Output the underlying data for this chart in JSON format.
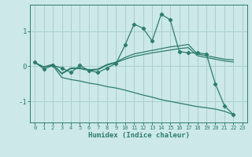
{
  "title": "",
  "xlabel": "Humidex (Indice chaleur)",
  "bg_color": "#cce8e8",
  "line_color": "#2d7d6e",
  "grid_color": "#aacfcf",
  "xlim": [
    -0.5,
    23.5
  ],
  "ylim": [
    -1.6,
    1.75
  ],
  "yticks": [
    -1,
    0,
    1
  ],
  "xticks": [
    0,
    1,
    2,
    3,
    4,
    5,
    6,
    7,
    8,
    9,
    10,
    11,
    12,
    13,
    14,
    15,
    16,
    17,
    18,
    19,
    20,
    21,
    22,
    23
  ],
  "line1_x": [
    0,
    1,
    2,
    3,
    4,
    5,
    6,
    7,
    8,
    9,
    10,
    11,
    12,
    13,
    14,
    15,
    16,
    17,
    18,
    19,
    20,
    21,
    22
  ],
  "line1_y": [
    0.12,
    -0.08,
    0.02,
    -0.05,
    -0.18,
    0.02,
    -0.12,
    -0.18,
    -0.05,
    0.08,
    0.6,
    1.2,
    1.08,
    0.72,
    1.48,
    1.32,
    0.42,
    0.38,
    0.38,
    0.35,
    -0.5,
    -1.12,
    -1.38
  ],
  "line2_x": [
    0,
    1,
    2,
    3,
    4,
    5,
    6,
    7,
    8,
    9,
    10,
    11,
    12,
    13,
    14,
    15,
    16,
    17,
    18,
    19,
    20,
    21,
    22
  ],
  "line2_y": [
    0.1,
    -0.02,
    0.05,
    -0.2,
    -0.05,
    -0.05,
    -0.1,
    -0.08,
    0.05,
    0.12,
    0.25,
    0.35,
    0.4,
    0.45,
    0.5,
    0.55,
    0.58,
    0.62,
    0.35,
    0.3,
    0.25,
    0.2,
    0.18
  ],
  "line3_x": [
    0,
    1,
    2,
    3,
    4,
    5,
    6,
    7,
    8,
    9,
    10,
    11,
    12,
    13,
    14,
    15,
    16,
    17,
    18,
    19,
    20,
    21,
    22
  ],
  "line3_y": [
    0.1,
    -0.02,
    0.05,
    -0.22,
    -0.07,
    -0.07,
    -0.12,
    -0.1,
    0.03,
    0.1,
    0.2,
    0.28,
    0.33,
    0.38,
    0.42,
    0.46,
    0.5,
    0.53,
    0.3,
    0.25,
    0.2,
    0.15,
    0.12
  ],
  "line4_x": [
    0,
    1,
    2,
    3,
    4,
    5,
    6,
    7,
    8,
    9,
    10,
    11,
    12,
    13,
    14,
    15,
    16,
    17,
    18,
    19,
    20,
    21,
    22
  ],
  "line4_y": [
    0.1,
    -0.02,
    0.02,
    -0.32,
    -0.38,
    -0.42,
    -0.48,
    -0.52,
    -0.58,
    -0.62,
    -0.68,
    -0.75,
    -0.82,
    -0.88,
    -0.95,
    -1.0,
    -1.05,
    -1.1,
    -1.15,
    -1.18,
    -1.22,
    -1.28,
    -1.38
  ]
}
